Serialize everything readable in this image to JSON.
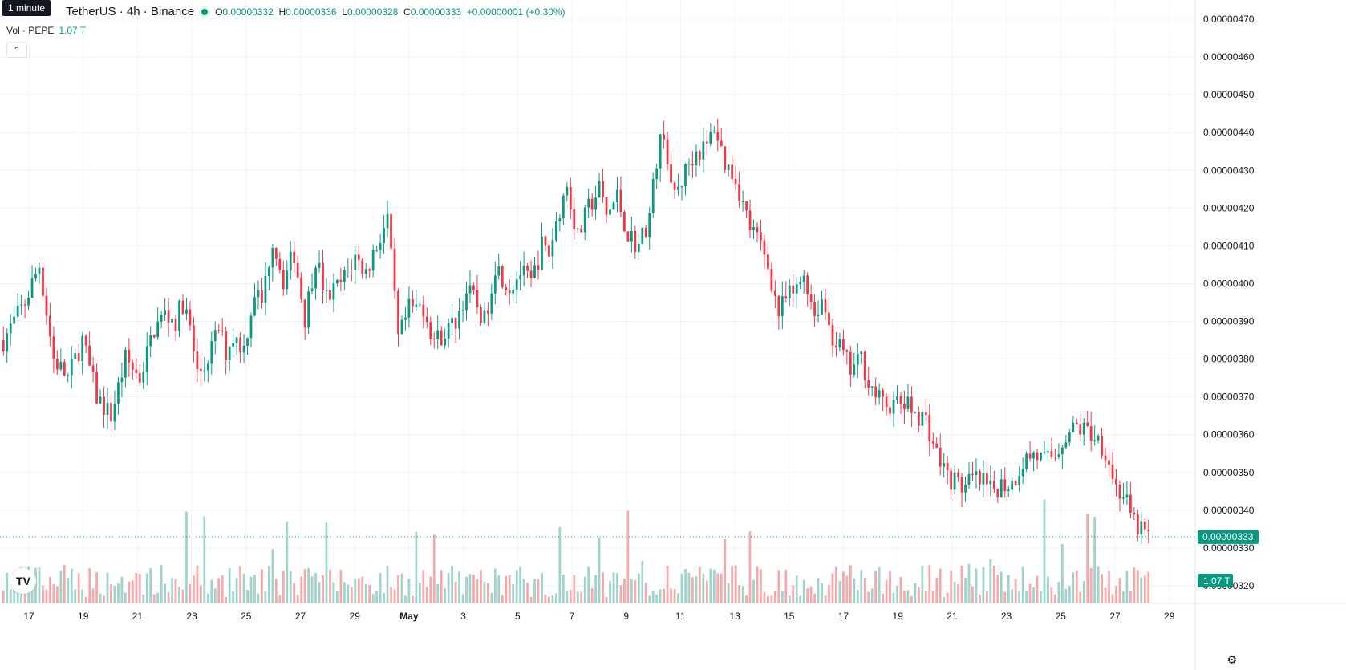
{
  "header": {
    "tooltip": "1 minute",
    "symbol": "TetherUS · 4h · Binance",
    "ohlc": {
      "o_label": "O",
      "o": "0.00000332",
      "h_label": "H",
      "h": "0.00000336",
      "l_label": "L",
      "l": "0.00000328",
      "c_label": "C",
      "c": "0.00000333",
      "change": "+0.00000001 (+0.30%)"
    },
    "volume_label": "Vol · PEPE",
    "volume_value": "1.07 T",
    "collapse_icon": "chevron-up-icon"
  },
  "colors": {
    "up": "#089981",
    "down": "#f23645",
    "up_vol": "#9fd4cb",
    "down_vol": "#f7a9a9"
  },
  "chart_data": {
    "type": "candlestick",
    "ylim": [
      3.15e-06,
      4.73e-06
    ],
    "y_ticks": [
      "0.00000320",
      "0.00000330",
      "0.00000340",
      "0.00000350",
      "0.00000360",
      "0.00000370",
      "0.00000380",
      "0.00000390",
      "0.00000400",
      "0.00000410",
      "0.00000420",
      "0.00000430",
      "0.00000440",
      "0.00000450",
      "0.00000460",
      "0.00000470"
    ],
    "x_ticks": [
      "17",
      "19",
      "21",
      "23",
      "25",
      "27",
      "29",
      "May",
      "3",
      "5",
      "7",
      "9",
      "11",
      "13",
      "15",
      "17",
      "19",
      "21",
      "23",
      "25",
      "27",
      "29"
    ],
    "last_price_label": "0.00000333",
    "last_volume_label": "1.07 T",
    "path_keypoints": [
      [
        0,
        385
      ],
      [
        6,
        395
      ],
      [
        10,
        405
      ],
      [
        14,
        380
      ],
      [
        18,
        375
      ],
      [
        22,
        385
      ],
      [
        26,
        370
      ],
      [
        30,
        365
      ],
      [
        34,
        380
      ],
      [
        38,
        375
      ],
      [
        42,
        388
      ],
      [
        45,
        392
      ],
      [
        48,
        390
      ],
      [
        50,
        395
      ],
      [
        52,
        388
      ],
      [
        54,
        376
      ],
      [
        56,
        378
      ],
      [
        58,
        383
      ],
      [
        60,
        388
      ],
      [
        62,
        382
      ],
      [
        64,
        386
      ],
      [
        67,
        383
      ],
      [
        70,
        398
      ],
      [
        72,
        395
      ],
      [
        75,
        412
      ],
      [
        78,
        401
      ],
      [
        81,
        408
      ],
      [
        84,
        391
      ],
      [
        87,
        407
      ],
      [
        90,
        396
      ],
      [
        94,
        400
      ],
      [
        98,
        407
      ],
      [
        101,
        403
      ],
      [
        103,
        408
      ],
      [
        107,
        417
      ],
      [
        110,
        385
      ],
      [
        113,
        393
      ],
      [
        117,
        394
      ],
      [
        120,
        385
      ],
      [
        123,
        387
      ],
      [
        126,
        390
      ],
      [
        129,
        398
      ],
      [
        131,
        396
      ],
      [
        134,
        390
      ],
      [
        137,
        405
      ],
      [
        141,
        399
      ],
      [
        144,
        403
      ],
      [
        147,
        400
      ],
      [
        150,
        410
      ],
      [
        152,
        408
      ],
      [
        155,
        420
      ],
      [
        157,
        426
      ],
      [
        160,
        412
      ],
      [
        163,
        420
      ],
      [
        166,
        425
      ],
      [
        168,
        418
      ],
      [
        171,
        423
      ],
      [
        174,
        413
      ],
      [
        177,
        410
      ],
      [
        180,
        418
      ],
      [
        182,
        433
      ],
      [
        184,
        441
      ],
      [
        186,
        424
      ],
      [
        188,
        425
      ],
      [
        191,
        432
      ],
      [
        193,
        435
      ],
      [
        196,
        436
      ],
      [
        198,
        442
      ],
      [
        201,
        432
      ],
      [
        204,
        428
      ],
      [
        206,
        421
      ],
      [
        208,
        415
      ],
      [
        211,
        410
      ],
      [
        213,
        405
      ],
      [
        216,
        392
      ],
      [
        218,
        396
      ],
      [
        221,
        398
      ],
      [
        223,
        403
      ],
      [
        226,
        392
      ],
      [
        228,
        396
      ],
      [
        231,
        386
      ],
      [
        233,
        383
      ],
      [
        236,
        377
      ],
      [
        239,
        380
      ],
      [
        242,
        372
      ],
      [
        245,
        368
      ],
      [
        248,
        368
      ],
      [
        251,
        368
      ],
      [
        254,
        366
      ],
      [
        257,
        364
      ],
      [
        260,
        355
      ],
      [
        263,
        349
      ],
      [
        266,
        347
      ],
      [
        268,
        346
      ],
      [
        270,
        348
      ],
      [
        273,
        347
      ],
      [
        275,
        345
      ],
      [
        278,
        347
      ],
      [
        281,
        347
      ],
      [
        284,
        353
      ],
      [
        287,
        355
      ],
      [
        290,
        353
      ],
      [
        293,
        355
      ],
      [
        296,
        360
      ],
      [
        299,
        362
      ],
      [
        302,
        361
      ],
      [
        305,
        359
      ],
      [
        307,
        356
      ],
      [
        310,
        346
      ],
      [
        312,
        344
      ],
      [
        315,
        336
      ],
      [
        317,
        335
      ],
      [
        319,
        333
      ]
    ],
    "candle_count": 320
  }
}
